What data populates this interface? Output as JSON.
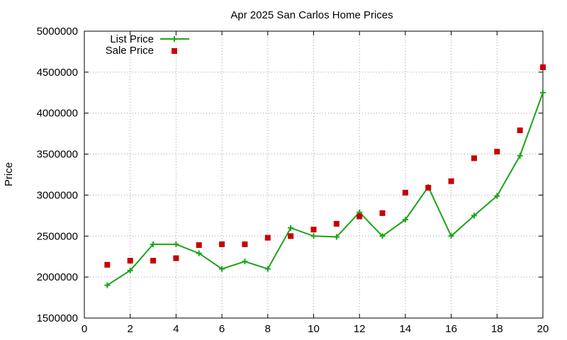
{
  "chart_data": {
    "type": "line",
    "title": "Apr 2025 San Carlos Home Prices",
    "xlabel": "",
    "ylabel": "Price",
    "xlim": [
      0,
      20
    ],
    "ylim": [
      1500000,
      5000000
    ],
    "x_ticks": [
      0,
      2,
      4,
      6,
      8,
      10,
      12,
      14,
      16,
      18,
      20
    ],
    "y_ticks": [
      1500000,
      2000000,
      2500000,
      3000000,
      3500000,
      4000000,
      4500000,
      5000000
    ],
    "grid": true,
    "legend_position": "top-left",
    "series": [
      {
        "name": "List Price",
        "style": "line-with-plus-markers",
        "color": "#1aa51a",
        "x": [
          1,
          2,
          3,
          4,
          5,
          6,
          7,
          8,
          9,
          10,
          11,
          12,
          13,
          14,
          15,
          16,
          17,
          18,
          19,
          20
        ],
        "y": [
          1900000,
          2080000,
          2400000,
          2400000,
          2290000,
          2100000,
          2190000,
          2100000,
          2600000,
          2500000,
          2490000,
          2790000,
          2500000,
          2700000,
          3100000,
          2500000,
          2750000,
          2990000,
          3480000,
          4250000
        ]
      },
      {
        "name": "Sale Price",
        "style": "square-markers",
        "color": "#c80000",
        "x": [
          1,
          2,
          3,
          4,
          5,
          6,
          7,
          8,
          9,
          10,
          11,
          12,
          13,
          14,
          15,
          16,
          17,
          18,
          19,
          20
        ],
        "y": [
          2150000,
          2200000,
          2200000,
          2230000,
          2390000,
          2400000,
          2400000,
          2480000,
          2500000,
          2580000,
          2650000,
          2740000,
          2780000,
          3030000,
          3090000,
          3170000,
          3450000,
          3530000,
          3790000,
          4560000
        ]
      }
    ]
  }
}
